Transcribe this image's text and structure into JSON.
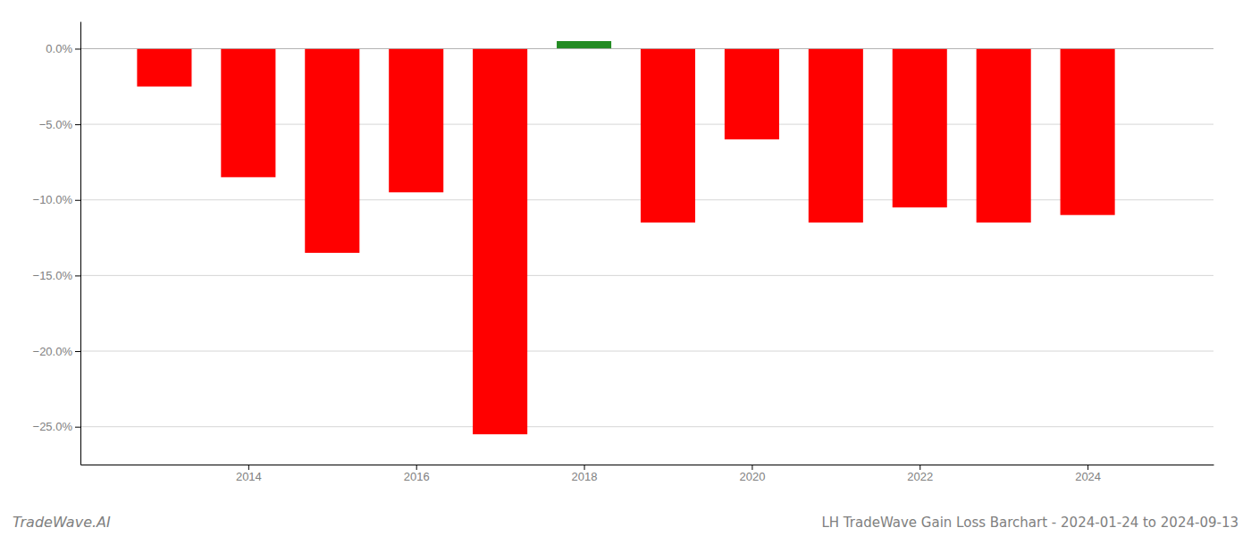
{
  "chart_data": {
    "type": "bar",
    "title": "LH TradeWave Gain Loss Barchart - 2024-01-24 to 2024-09-13",
    "annotations": [
      {
        "text": "TradeWave.AI"
      }
    ],
    "x": [
      2013,
      2014,
      2015,
      2016,
      2017,
      2018,
      2019,
      2020,
      2021,
      2022,
      2023,
      2024
    ],
    "values": [
      -2.5,
      -8.5,
      -13.5,
      -9.5,
      -25.5,
      0.5,
      -11.5,
      -6.0,
      -11.5,
      -10.5,
      -11.5,
      -11.0
    ],
    "colors": [
      "#ff0000",
      "#ff0000",
      "#ff0000",
      "#ff0000",
      "#ff0000",
      "#228B22",
      "#ff0000",
      "#ff0000",
      "#ff0000",
      "#ff0000",
      "#ff0000",
      "#ff0000"
    ],
    "xlim": [
      2012.0,
      2025.5
    ],
    "xticks": [
      2014,
      2016,
      2018,
      2020,
      2022,
      2024
    ],
    "ylim": [
      -27.5,
      1.8
    ],
    "yticks": [
      {
        "value": 0.0,
        "label": "0.0%"
      },
      {
        "value": -5.0,
        "label": "−5.0%"
      },
      {
        "value": -10.0,
        "label": "−10.0%"
      },
      {
        "value": -15.0,
        "label": "−15.0%"
      },
      {
        "value": -20.0,
        "label": "−20.0%"
      },
      {
        "value": -25.0,
        "label": "−25.0%"
      }
    ],
    "grid": true
  }
}
